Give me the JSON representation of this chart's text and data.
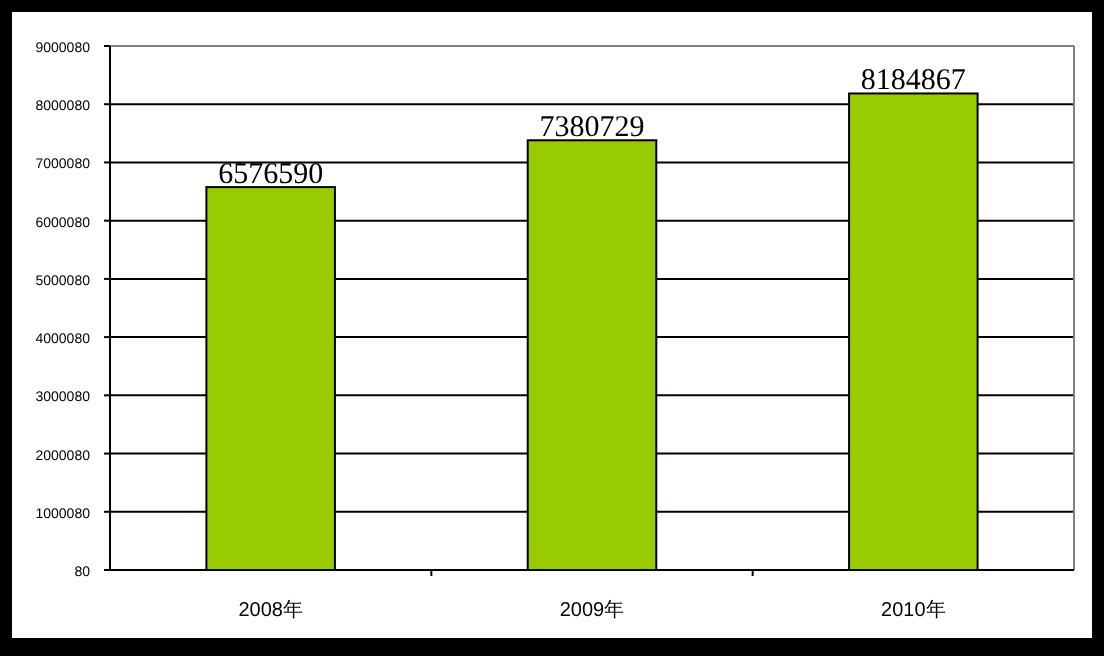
{
  "chart_data": {
    "type": "bar",
    "categories": [
      "2008年",
      "2009年",
      "2010年"
    ],
    "values": [
      6576590,
      7380729,
      8184867
    ],
    "color": "#99cc00",
    "data_labels": true,
    "ylim": [
      80,
      9000080
    ],
    "yticks": [
      80,
      1000080,
      2000080,
      3000080,
      4000080,
      5000080,
      6000080,
      7000080,
      8000080,
      9000080
    ],
    "grid": "y"
  }
}
